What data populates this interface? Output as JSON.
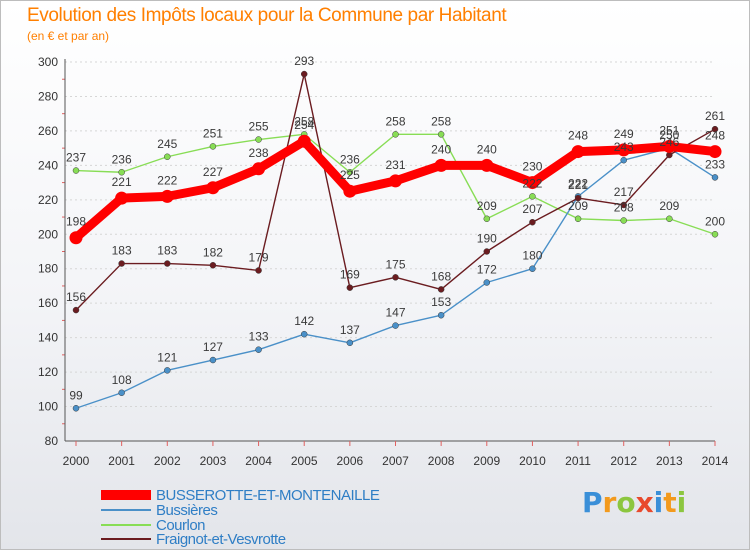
{
  "header": {
    "title": "Evolution des Impôts locaux pour la Commune par Habitant",
    "subtitle": "(en € et par an)"
  },
  "chart_data": {
    "type": "line",
    "title": "Evolution des Impôts locaux pour la Commune par Habitant",
    "subtitle": "(en € et par an)",
    "xlabel": "",
    "ylabel": "",
    "x": [
      2000,
      2001,
      2002,
      2003,
      2004,
      2005,
      2006,
      2007,
      2008,
      2009,
      2010,
      2011,
      2012,
      2013,
      2014
    ],
    "ylim": [
      80,
      300
    ],
    "yticks": [
      80,
      100,
      120,
      140,
      160,
      180,
      200,
      220,
      240,
      260,
      280,
      300
    ],
    "grid": "horizontal",
    "legend_position": "bottom-left",
    "series": [
      {
        "name": "BUSSEROTTE-ET-MONTENAILLE",
        "color": "#ff0000",
        "values": [
          198,
          221,
          222,
          227,
          238,
          254,
          225,
          231,
          240,
          240,
          230,
          248,
          249,
          251,
          248
        ]
      },
      {
        "name": "Bussières",
        "color": "#4a90c8",
        "values": [
          99,
          108,
          121,
          127,
          133,
          142,
          137,
          147,
          153,
          172,
          180,
          222,
          243,
          250,
          233
        ]
      },
      {
        "name": "Courlon",
        "color": "#88dd55",
        "values": [
          237,
          236,
          245,
          251,
          255,
          258,
          236,
          258,
          258,
          209,
          222,
          209,
          208,
          209,
          200
        ]
      },
      {
        "name": "Fraignot-et-Vesvrotte",
        "color": "#6b1c20",
        "values": [
          156,
          183,
          183,
          182,
          179,
          293,
          169,
          175,
          168,
          190,
          207,
          221,
          217,
          246,
          261
        ]
      }
    ],
    "point_labels": {
      "BUSSEROTTE-ET-MONTENAILLE": [
        "198",
        "221",
        "222",
        "227",
        "238",
        "254",
        "225",
        "231",
        "240",
        "240",
        "230",
        "248",
        "249",
        "251",
        "248"
      ],
      "Bussières": [
        "99",
        "108",
        "121",
        "127",
        "133",
        "142",
        "137",
        "147",
        "153",
        "172",
        "180",
        "222",
        "243",
        "250",
        "233"
      ],
      "Courlon": [
        "237",
        "236",
        "245",
        "251",
        "255",
        "258",
        "236",
        "258",
        "258",
        "209",
        "222",
        "209",
        "208",
        "209",
        "200"
      ],
      "Fraignot-et-Vesvrotte": [
        "156",
        "183",
        "183",
        "182",
        "179",
        "293",
        "169",
        "175",
        "168",
        "190",
        "207",
        "221",
        "217",
        "246",
        "261"
      ]
    }
  },
  "branding": {
    "logo_letters": [
      "P",
      "r",
      "o",
      "x",
      "i",
      "t",
      "i"
    ],
    "logo_colors": [
      "#3a8fd8",
      "#f39a1d",
      "#8cc63f",
      "#e8492d",
      "#3a8fd8",
      "#f39a1d",
      "#8cc63f"
    ]
  }
}
